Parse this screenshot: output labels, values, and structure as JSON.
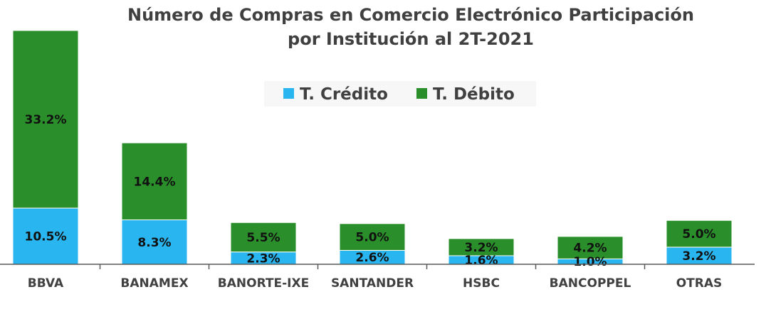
{
  "chart_data": {
    "type": "bar",
    "stacked": true,
    "title": "Número de Compras en Comercio Electrónico Participación por Institución al 2T-2021",
    "title_lines": [
      "Número de Compras en Comercio Electrónico Participación",
      "por Institución al 2T-2021"
    ],
    "categories": [
      "BBVA",
      "BANAMEX",
      "BANORTE-IXE",
      "SANTANDER",
      "HSBC",
      "BANCOPPEL",
      "OTRAS"
    ],
    "series": [
      {
        "name": "T. Crédito",
        "color": "#29B6F0",
        "values": [
          10.5,
          8.3,
          2.3,
          2.6,
          1.6,
          1.0,
          3.2
        ],
        "labels": [
          "10.5%",
          "8.3%",
          "2.3%",
          "2.6%",
          "1.6%",
          "1.0%",
          "3.2%"
        ]
      },
      {
        "name": "T. Débito",
        "color": "#2A8F2A",
        "values": [
          33.2,
          14.4,
          5.5,
          5.0,
          3.2,
          4.2,
          5.0
        ],
        "labels": [
          "33.2%",
          "14.4%",
          "5.5%",
          "5.0%",
          "3.2%",
          "4.2%",
          "5.0%"
        ]
      }
    ],
    "unit": "%",
    "legend_position": "top-center",
    "grid": false,
    "ylim": [
      0,
      44
    ]
  }
}
